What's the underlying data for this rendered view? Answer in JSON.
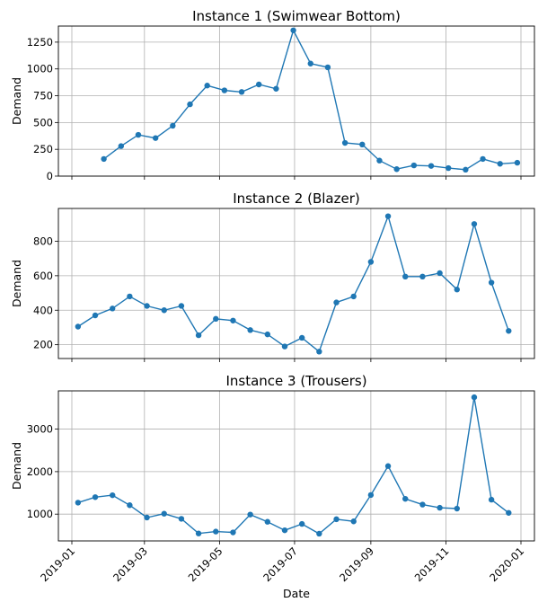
{
  "figure": {
    "xlabel": "Date"
  },
  "x_tick_labels": [
    "2019-01",
    "2019-03",
    "2019-05",
    "2019-07",
    "2019-09",
    "2019-11",
    "2020-01"
  ],
  "colors": {
    "line": "#1f77b4",
    "grid": "#b0b0b0",
    "axis": "#000000"
  },
  "chart_data": [
    {
      "type": "line",
      "title": "Instance 1 (Swimwear Bottom)",
      "xlabel": "",
      "ylabel": "Demand",
      "ylim": [
        0,
        1400
      ],
      "yticks": [
        0,
        250,
        500,
        750,
        1000,
        1250
      ],
      "x": [
        "2019-01-27",
        "2019-02-10",
        "2019-02-24",
        "2019-03-10",
        "2019-03-24",
        "2019-04-07",
        "2019-04-21",
        "2019-05-05",
        "2019-05-19",
        "2019-06-02",
        "2019-06-16",
        "2019-06-30",
        "2019-07-14",
        "2019-07-28",
        "2019-08-11",
        "2019-08-25",
        "2019-09-08",
        "2019-09-22",
        "2019-10-06",
        "2019-10-20",
        "2019-11-03",
        "2019-11-17",
        "2019-12-01",
        "2019-12-15",
        "2019-12-29"
      ],
      "values": [
        160,
        280,
        385,
        355,
        470,
        670,
        845,
        800,
        785,
        855,
        815,
        1360,
        1050,
        1015,
        310,
        295,
        145,
        65,
        100,
        95,
        75,
        60,
        160,
        115,
        125
      ]
    },
    {
      "type": "line",
      "title": "Instance 2 (Blazer)",
      "xlabel": "",
      "ylabel": "Demand",
      "ylim": [
        120,
        990
      ],
      "yticks": [
        200,
        400,
        600,
        800
      ],
      "x": [
        "2019-01-06",
        "2019-01-20",
        "2019-02-03",
        "2019-02-17",
        "2019-03-03",
        "2019-03-17",
        "2019-03-31",
        "2019-04-14",
        "2019-04-28",
        "2019-05-12",
        "2019-05-26",
        "2019-06-09",
        "2019-06-23",
        "2019-07-07",
        "2019-07-21",
        "2019-08-04",
        "2019-08-18",
        "2019-09-01",
        "2019-09-15",
        "2019-09-29",
        "2019-10-13",
        "2019-10-27",
        "2019-11-10",
        "2019-11-24",
        "2019-12-08",
        "2019-12-22"
      ],
      "values": [
        305,
        370,
        410,
        480,
        425,
        400,
        425,
        255,
        350,
        340,
        285,
        260,
        190,
        240,
        160,
        445,
        480,
        680,
        945,
        595,
        595,
        615,
        520,
        900,
        560,
        280
      ]
    },
    {
      "type": "line",
      "title": "Instance 3 (Trousers)",
      "xlabel": "Date",
      "ylabel": "Demand",
      "ylim": [
        370,
        3900
      ],
      "yticks": [
        1000,
        2000,
        3000
      ],
      "x": [
        "2019-01-06",
        "2019-01-20",
        "2019-02-03",
        "2019-02-17",
        "2019-03-03",
        "2019-03-17",
        "2019-03-31",
        "2019-04-14",
        "2019-04-28",
        "2019-05-12",
        "2019-05-26",
        "2019-06-09",
        "2019-06-23",
        "2019-07-07",
        "2019-07-21",
        "2019-08-04",
        "2019-08-18",
        "2019-09-01",
        "2019-09-15",
        "2019-09-29",
        "2019-10-13",
        "2019-10-27",
        "2019-11-10",
        "2019-11-24",
        "2019-12-08",
        "2019-12-22"
      ],
      "values": [
        1270,
        1400,
        1445,
        1210,
        920,
        1010,
        890,
        545,
        590,
        570,
        990,
        820,
        620,
        770,
        540,
        880,
        830,
        1450,
        2130,
        1360,
        1225,
        1150,
        1130,
        3750,
        1340,
        1030
      ]
    }
  ]
}
